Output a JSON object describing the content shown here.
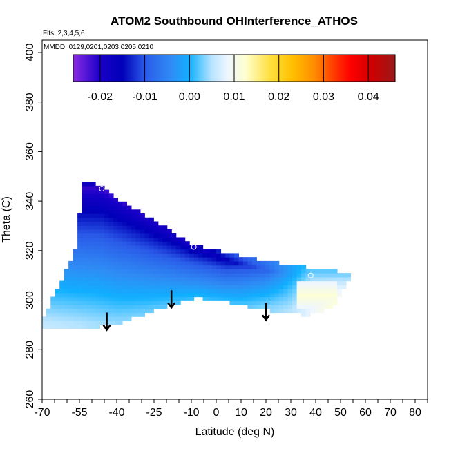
{
  "chart_data": {
    "type": "heatmap",
    "title": "ATOM2 Southbound OHInterference_ATHOS",
    "flights_label": "Flts: 2,3,4,5,6",
    "dates_label": "MMDD: 0129,0201,0203,0205,0210",
    "xlabel": "Latitude (deg N)",
    "ylabel": "Theta (C)",
    "xlim": [
      -70,
      85
    ],
    "ylim": [
      260,
      405
    ],
    "x_ticks": [
      -70,
      -55,
      -40,
      -25,
      -10,
      0,
      10,
      20,
      30,
      40,
      50,
      60,
      70,
      80
    ],
    "x_tick_labels": [
      "-70",
      "-55",
      "-40",
      "-25",
      "-10",
      "0",
      "10",
      "20",
      "30",
      "40",
      "50",
      "60",
      "70",
      "80"
    ],
    "x_minor_step": 5,
    "y_ticks": [
      260,
      280,
      300,
      320,
      340,
      360,
      380,
      400
    ],
    "y_tick_labels": [
      "260",
      "280",
      "300",
      "320",
      "340",
      "360",
      "380",
      "400"
    ],
    "colorbar": {
      "range": [
        -0.026,
        0.046
      ],
      "ticks": [
        -0.02,
        -0.01,
        0.0,
        0.01,
        0.02,
        0.03,
        0.04
      ],
      "tick_labels": [
        "-0.02",
        "-0.01",
        "0.00",
        "0.01",
        "0.02",
        "0.03",
        "0.04"
      ],
      "colors": [
        {
          "v": -0.026,
          "c": "#8a2be2"
        },
        {
          "v": -0.02,
          "c": "#1a00c8"
        },
        {
          "v": -0.015,
          "c": "#0000b8"
        },
        {
          "v": -0.01,
          "c": "#2a5ae8"
        },
        {
          "v": -0.004,
          "c": "#2f8cf5"
        },
        {
          "v": 0.0,
          "c": "#10b0ff"
        },
        {
          "v": 0.005,
          "c": "#b8e4ff"
        },
        {
          "v": 0.0085,
          "c": "#eef6ff"
        },
        {
          "v": 0.0125,
          "c": "#ffffd0"
        },
        {
          "v": 0.018,
          "c": "#ffe040"
        },
        {
          "v": 0.023,
          "c": "#ffc000"
        },
        {
          "v": 0.028,
          "c": "#ff8c00"
        },
        {
          "v": 0.032,
          "c": "#ff4000"
        },
        {
          "v": 0.036,
          "c": "#ff0000"
        },
        {
          "v": 0.041,
          "c": "#cc0000"
        },
        {
          "v": 0.046,
          "c": "#9a1a1a"
        }
      ]
    },
    "field": {
      "outline": [
        [
          -71,
          289
        ],
        [
          -56,
          322
        ],
        [
          -54,
          347
        ],
        [
          -49,
          348
        ],
        [
          -40,
          341
        ],
        [
          -30,
          335
        ],
        [
          -20,
          329
        ],
        [
          -10,
          323
        ],
        [
          0,
          320
        ],
        [
          10,
          318
        ],
        [
          20,
          316
        ],
        [
          30,
          314
        ],
        [
          40,
          313
        ],
        [
          55,
          311
        ],
        [
          47,
          297
        ],
        [
          37,
          294
        ],
        [
          25,
          295
        ],
        [
          15,
          297
        ],
        [
          5,
          299
        ],
        [
          -8,
          301
        ],
        [
          -18,
          298
        ],
        [
          -30,
          294
        ],
        [
          -40,
          290
        ],
        [
          -50,
          289
        ],
        [
          -70,
          289
        ]
      ],
      "core_line": [
        [
          -46,
          345
        ],
        [
          -25,
          331
        ],
        [
          -9,
          322
        ],
        [
          4,
          316
        ],
        [
          20,
          312
        ],
        [
          38,
          309
        ]
      ],
      "core_values": [
        -0.022,
        -0.02,
        -0.019,
        -0.016,
        -0.009,
        0.004
      ],
      "floor_line": [
        [
          -71,
          290
        ],
        [
          -40,
          291
        ],
        [
          -20,
          298
        ],
        [
          -8,
          301
        ],
        [
          10,
          298
        ],
        [
          30,
          296
        ],
        [
          47,
          298
        ]
      ],
      "floor_values": [
        0.006,
        0.004,
        0.002,
        0.001,
        0.002,
        0.005,
        0.012
      ],
      "yellow_patch": {
        "lat_range": [
          33,
          48
        ],
        "theta_range": [
          296,
          308
        ],
        "value": 0.012
      }
    },
    "markers": [
      {
        "lat": -46,
        "theta": 345
      },
      {
        "lat": -9,
        "theta": 321.5
      },
      {
        "lat": 38,
        "theta": 310
      }
    ],
    "arrows": [
      {
        "lat": -44,
        "theta_start": 295,
        "theta_end": 288
      },
      {
        "lat": -18,
        "theta_start": 304,
        "theta_end": 297
      },
      {
        "lat": 20,
        "theta_start": 299,
        "theta_end": 292
      }
    ]
  }
}
